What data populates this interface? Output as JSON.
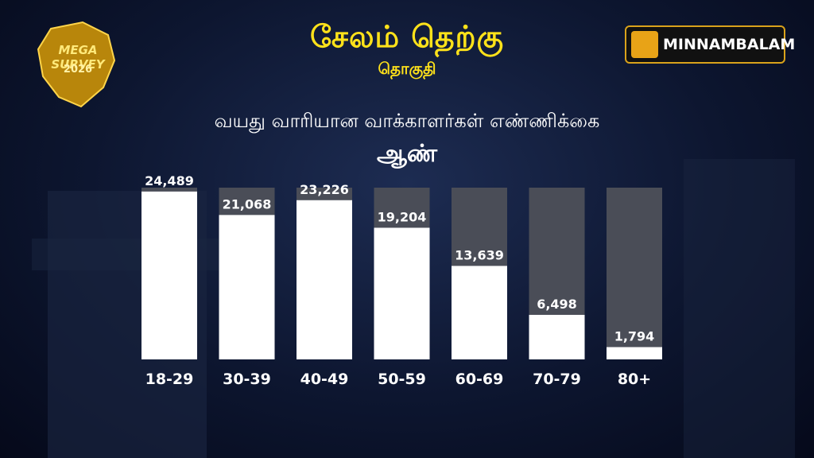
{
  "header": {
    "title": "சேலம் தெற்கு",
    "subtitle": "தொகுதி"
  },
  "badge": {
    "line1": "MEGA SURVEY",
    "line2": "2026"
  },
  "brand": {
    "name": "MINNAMBALAM"
  },
  "colors": {
    "title": "#ffe21a",
    "bar_fill": "#ffffff",
    "bar_track": "#4a4d57",
    "background": "#0d1630",
    "brand_accent": "#e8a317"
  },
  "chart_data": {
    "type": "bar",
    "title": "வயது வாரியான வாக்காளர்கள் எண்ணிக்கை",
    "subtitle": "ஆண்",
    "categories": [
      "18-29",
      "30-39",
      "40-49",
      "50-59",
      "60-69",
      "70-79",
      "80+"
    ],
    "values": [
      24489,
      21068,
      23226,
      19204,
      13639,
      6498,
      1794
    ],
    "value_labels": [
      "24,489",
      "21,068",
      "23,226",
      "19,204",
      "13,639",
      "6,498",
      "1,794"
    ],
    "ylim": [
      0,
      29000
    ],
    "grid": false,
    "legend": "none"
  }
}
